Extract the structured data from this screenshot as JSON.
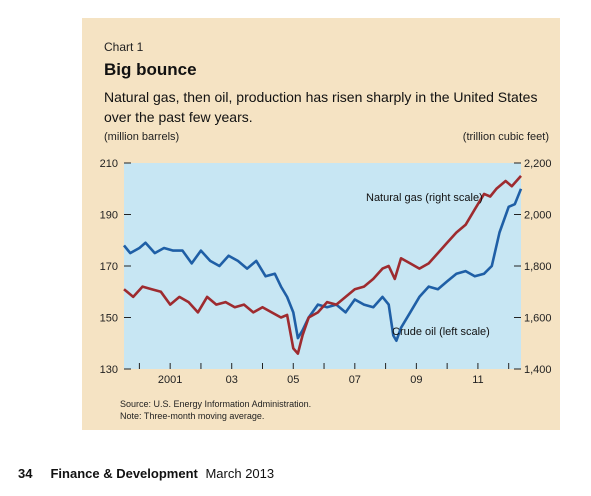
{
  "chart_number": "Chart 1",
  "title": "Big bounce",
  "subtitle": "Natural gas, then oil, production has risen sharply in the United States over the past few years.",
  "left_unit": "(million barrels)",
  "right_unit": "(trillion cubic feet)",
  "source": "Source: U.S. Energy Information Administration.",
  "note": "Note: Three-month moving average.",
  "footer": {
    "page": "34",
    "publication": "Finance & Development",
    "issue": "March 2013"
  },
  "colors": {
    "panel": "#f5e3c3",
    "plot_bg": "#c7e6f3",
    "oil": "#1f5fa6",
    "gas": "#9e2b2f"
  },
  "chart_data": {
    "type": "line",
    "dual_axis": true,
    "x_tick_labels": [
      "2001",
      "03",
      "05",
      "07",
      "09",
      "11"
    ],
    "y_left": {
      "min": 130,
      "max": 210,
      "ticks": [
        130,
        150,
        170,
        190,
        210
      ]
    },
    "y_right": {
      "min": 1400,
      "max": 2200,
      "ticks": [
        1400,
        1600,
        1800,
        2000,
        2200
      ],
      "tick_labels": [
        "1,400",
        "1,600",
        "1,800",
        "2,000",
        "2,200"
      ]
    },
    "x_range": [
      2000.0,
      2012.9
    ],
    "series": [
      {
        "name": "Crude oil (left scale)",
        "axis": "left",
        "color": "#1f5fa6",
        "points": [
          [
            2000.0,
            178
          ],
          [
            2000.2,
            175
          ],
          [
            2000.5,
            177
          ],
          [
            2000.7,
            179
          ],
          [
            2001.0,
            175
          ],
          [
            2001.3,
            177
          ],
          [
            2001.6,
            176
          ],
          [
            2001.9,
            176
          ],
          [
            2002.2,
            171
          ],
          [
            2002.5,
            176
          ],
          [
            2002.8,
            172
          ],
          [
            2003.1,
            170
          ],
          [
            2003.4,
            174
          ],
          [
            2003.7,
            172
          ],
          [
            2004.0,
            169
          ],
          [
            2004.3,
            172
          ],
          [
            2004.6,
            166
          ],
          [
            2004.9,
            167
          ],
          [
            2005.1,
            162
          ],
          [
            2005.3,
            158
          ],
          [
            2005.5,
            152
          ],
          [
            2005.65,
            142
          ],
          [
            2005.8,
            145
          ],
          [
            2006.0,
            150
          ],
          [
            2006.3,
            155
          ],
          [
            2006.6,
            154
          ],
          [
            2006.9,
            155
          ],
          [
            2007.2,
            152
          ],
          [
            2007.5,
            157
          ],
          [
            2007.8,
            155
          ],
          [
            2008.1,
            154
          ],
          [
            2008.4,
            158
          ],
          [
            2008.6,
            155
          ],
          [
            2008.75,
            143
          ],
          [
            2008.85,
            141
          ],
          [
            2009.0,
            146
          ],
          [
            2009.3,
            152
          ],
          [
            2009.6,
            158
          ],
          [
            2009.9,
            162
          ],
          [
            2010.2,
            161
          ],
          [
            2010.5,
            164
          ],
          [
            2010.8,
            167
          ],
          [
            2011.1,
            168
          ],
          [
            2011.4,
            166
          ],
          [
            2011.7,
            167
          ],
          [
            2011.95,
            170
          ],
          [
            2012.2,
            183
          ],
          [
            2012.5,
            193
          ],
          [
            2012.7,
            194
          ],
          [
            2012.9,
            200
          ]
        ]
      },
      {
        "name": "Natural gas (right scale)",
        "axis": "right",
        "color": "#9e2b2f",
        "points": [
          [
            2000.0,
            1710
          ],
          [
            2000.3,
            1680
          ],
          [
            2000.6,
            1720
          ],
          [
            2000.9,
            1710
          ],
          [
            2001.2,
            1700
          ],
          [
            2001.5,
            1650
          ],
          [
            2001.8,
            1680
          ],
          [
            2002.1,
            1660
          ],
          [
            2002.4,
            1620
          ],
          [
            2002.7,
            1680
          ],
          [
            2003.0,
            1650
          ],
          [
            2003.3,
            1660
          ],
          [
            2003.6,
            1640
          ],
          [
            2003.9,
            1650
          ],
          [
            2004.2,
            1620
          ],
          [
            2004.5,
            1640
          ],
          [
            2004.8,
            1620
          ],
          [
            2005.1,
            1600
          ],
          [
            2005.3,
            1610
          ],
          [
            2005.5,
            1480
          ],
          [
            2005.65,
            1460
          ],
          [
            2005.8,
            1530
          ],
          [
            2006.0,
            1600
          ],
          [
            2006.3,
            1620
          ],
          [
            2006.6,
            1660
          ],
          [
            2006.9,
            1650
          ],
          [
            2007.2,
            1680
          ],
          [
            2007.5,
            1710
          ],
          [
            2007.8,
            1720
          ],
          [
            2008.1,
            1750
          ],
          [
            2008.4,
            1790
          ],
          [
            2008.6,
            1800
          ],
          [
            2008.8,
            1750
          ],
          [
            2009.0,
            1830
          ],
          [
            2009.3,
            1810
          ],
          [
            2009.6,
            1790
          ],
          [
            2009.9,
            1810
          ],
          [
            2010.2,
            1850
          ],
          [
            2010.5,
            1890
          ],
          [
            2010.8,
            1930
          ],
          [
            2011.1,
            1960
          ],
          [
            2011.4,
            2020
          ],
          [
            2011.7,
            2080
          ],
          [
            2011.9,
            2070
          ],
          [
            2012.1,
            2100
          ],
          [
            2012.4,
            2130
          ],
          [
            2012.6,
            2110
          ],
          [
            2012.9,
            2150
          ]
        ]
      }
    ],
    "annotations": [
      {
        "text": "Natural gas (right scale)",
        "series": "gas"
      },
      {
        "text": "Crude oil (left scale)",
        "series": "oil"
      }
    ],
    "grid": false,
    "legend": "inline labels"
  }
}
